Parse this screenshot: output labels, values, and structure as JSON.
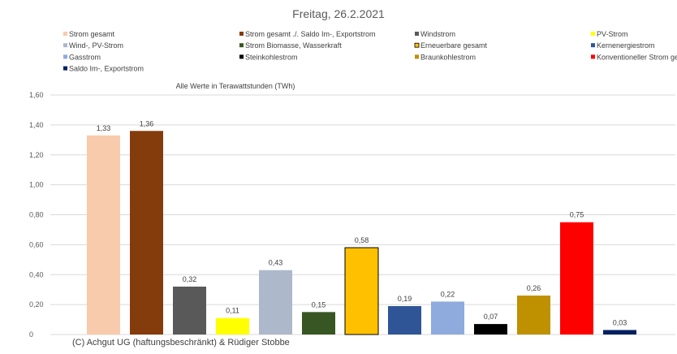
{
  "chart_data": {
    "type": "bar",
    "title": "Freitag, 26.2.2021",
    "note": "Alle Werte in Terawattstunden (TWh)",
    "footer": "(C) Achgut UG (haftungsbeschränkt) & Rüdiger Stobbe",
    "ylim": [
      0,
      1.6
    ],
    "yticks": [
      "0",
      "0,20",
      "0,40",
      "0,60",
      "0,80",
      "1,00",
      "1,20",
      "1,40",
      "1,60"
    ],
    "grid": true,
    "legend_position": "top",
    "categories": [
      "Strom gesamt",
      "Strom gesamt ./. Saldo Im-, Exportstrom",
      "Windstrom",
      "PV-Strom",
      "Wind-, PV-Strom",
      "Strom Biomasse, Wasserkraft",
      "Erneuerbare gesamt",
      "Kernenergiestrom",
      "Gasstrom",
      "Steinkohlestrom",
      "Braunkohlestrom",
      "Konventioneller Strom gesamt",
      "Saldo Im-, Exportstrom"
    ],
    "values": [
      1.33,
      1.36,
      0.32,
      0.11,
      0.43,
      0.15,
      0.58,
      0.19,
      0.22,
      0.07,
      0.26,
      0.75,
      0.03
    ],
    "value_labels": [
      "1,33",
      "1,36",
      "0,32",
      "0,11",
      "0,43",
      "0,15",
      "0,58",
      "0,19",
      "0,22",
      "0,07",
      "0,26",
      "0,75",
      "0,03"
    ],
    "colors": [
      "#f8cbad",
      "#843c0c",
      "#595959",
      "#ffff00",
      "#adb9ca",
      "#375623",
      "#ffc000",
      "#2f5597",
      "#8faadc",
      "#000000",
      "#bf9000",
      "#ff0000",
      "#002060"
    ],
    "legend_order": [
      0,
      1,
      2,
      3,
      4,
      5,
      6,
      7,
      8,
      9,
      10,
      11,
      12
    ]
  }
}
